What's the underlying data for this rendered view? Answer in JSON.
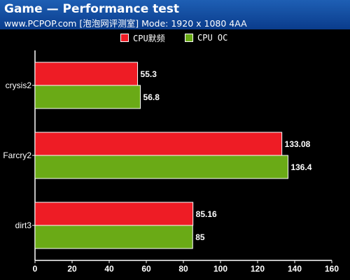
{
  "header": {
    "title": "Game — Performance test",
    "subtitle": "www.PCPOP.com [泡泡网评测室] Mode: 1920 x 1080 4AA"
  },
  "colors": {
    "background": "#000000",
    "header": "#0a3c8c",
    "series_1": "#ee1c25",
    "series_2": "#6aaa16",
    "text": "#ffffff"
  },
  "chart_data": {
    "type": "bar",
    "orientation": "horizontal",
    "title": "Game — Performance test",
    "subtitle": "www.PCPOP.com [泡泡网评测室] Mode: 1920 x 1080 4AA",
    "categories": [
      "crysis2",
      "Farcry2",
      "dirt3"
    ],
    "series": [
      {
        "name": "CPU默频",
        "color": "#ee1c25",
        "values": [
          55.3,
          133.08,
          85.16
        ]
      },
      {
        "name": "CPU OC",
        "color": "#6aaa16",
        "values": [
          56.8,
          136.4,
          85
        ]
      }
    ],
    "value_labels": [
      [
        "55.3",
        "133.08",
        "85.16"
      ],
      [
        "56.8",
        "136.4",
        "85"
      ]
    ],
    "xlim": [
      0,
      160
    ],
    "xticks": [
      "0",
      "20",
      "40",
      "60",
      "80",
      "100",
      "120",
      "140",
      "160"
    ],
    "xlabel": "",
    "ylabel": "",
    "grid": false,
    "legend_position": "top-center"
  }
}
